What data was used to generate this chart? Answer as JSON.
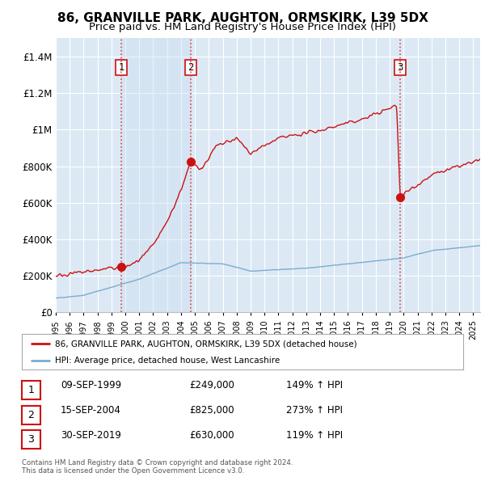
{
  "title": "86, GRANVILLE PARK, AUGHTON, ORMSKIRK, L39 5DX",
  "subtitle": "Price paid vs. HM Land Registry's House Price Index (HPI)",
  "ylabel_ticks": [
    "£0",
    "£200K",
    "£400K",
    "£600K",
    "£800K",
    "£1M",
    "£1.2M",
    "£1.4M"
  ],
  "ytick_values": [
    0,
    200000,
    400000,
    600000,
    800000,
    1000000,
    1200000,
    1400000
  ],
  "ylim": [
    0,
    1500000
  ],
  "xlim_start": 1995.0,
  "xlim_end": 2025.5,
  "sale_dates": [
    1999.71,
    2004.71,
    2019.75
  ],
  "sale_prices": [
    249000,
    825000,
    630000
  ],
  "sale_labels": [
    "1",
    "2",
    "3"
  ],
  "hpi_color": "#7aadcf",
  "price_color": "#cc1111",
  "dashed_color": "#dd4444",
  "fill_color": "#d0e4f5",
  "background_color": "#dce9f5",
  "plot_bg_color": "#dce9f5",
  "grid_color": "#ffffff",
  "legend_label_red": "86, GRANVILLE PARK, AUGHTON, ORMSKIRK, L39 5DX (detached house)",
  "legend_label_blue": "HPI: Average price, detached house, West Lancashire",
  "table_data": [
    [
      "1",
      "09-SEP-1999",
      "£249,000",
      "149% ↑ HPI"
    ],
    [
      "2",
      "15-SEP-2004",
      "£825,000",
      "273% ↑ HPI"
    ],
    [
      "3",
      "30-SEP-2019",
      "£630,000",
      "119% ↑ HPI"
    ]
  ],
  "footer": "Contains HM Land Registry data © Crown copyright and database right 2024.\nThis data is licensed under the Open Government Licence v3.0.",
  "title_fontsize": 11,
  "subtitle_fontsize": 9.5
}
